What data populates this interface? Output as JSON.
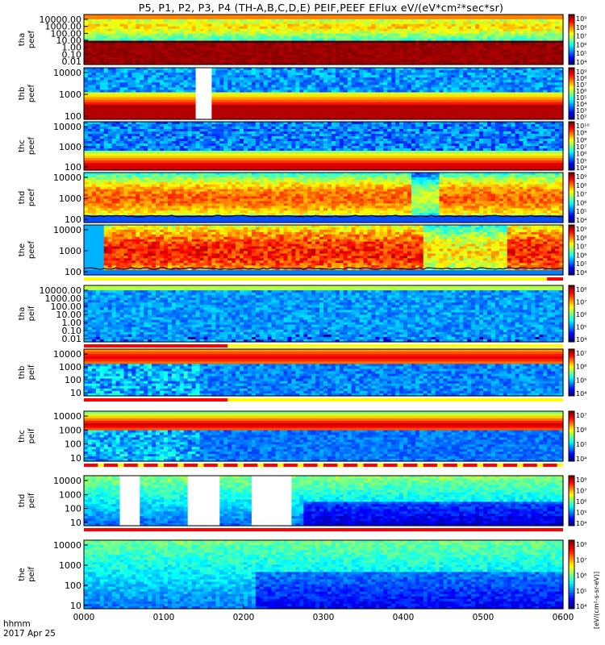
{
  "title": "P5, P1, P2, P3, P4 (TH-A,B,C,D,E) PEIF,PEEF EFlux eV/(eV*cm²*sec*sr)",
  "footer": {
    "time_format": "hhmm",
    "date": "2017 Apr 25"
  },
  "colorbar_label": "[eV/(cm²-s-sr-eV)]",
  "colors": {
    "red": "#ff0000",
    "yellow": "#ffff00",
    "flag_bg": "#ffffff"
  },
  "chart_data": {
    "type": "heatmap",
    "xlabel": "",
    "x_ticks": [
      "0000",
      "0100",
      "0200",
      "0300",
      "0400",
      "0500",
      "0600"
    ],
    "x_range_hours": [
      0,
      6
    ],
    "panels": [
      {
        "probe": "tha",
        "species": "peef",
        "label": "tha peef",
        "y_ticks": [
          "10000.00",
          "1000.00",
          "100.00",
          "10.00",
          "1.00",
          "0.10",
          "0.01"
        ],
        "cb_ticks": [
          "10⁹",
          "10⁸",
          "10⁷",
          "10⁶",
          "10⁵",
          "10⁴"
        ],
        "gaps": [],
        "flag_bar": "none",
        "potential_line": true
      },
      {
        "probe": "thb",
        "species": "peef",
        "label": "thb peef",
        "y_ticks": [
          "10000",
          "1000",
          "100"
        ],
        "cb_ticks": [
          "10⁹",
          "10⁸",
          "10⁷",
          "10⁶",
          "10⁵",
          "10⁴",
          "10³",
          "10²"
        ],
        "gaps": [
          [
            1.4,
            1.6
          ]
        ],
        "flag_bar": "none",
        "potential_line": false
      },
      {
        "probe": "thc",
        "species": "peef",
        "label": "thc peef",
        "y_ticks": [
          "10000",
          "1000",
          "100"
        ],
        "cb_ticks": [
          "10¹⁰",
          "10⁹",
          "10⁸",
          "10⁷",
          "10⁶",
          "10⁵",
          "10⁴"
        ],
        "gaps": [],
        "flag_bar": "none",
        "potential_line": false
      },
      {
        "probe": "thd",
        "species": "peef",
        "label": "thd peef",
        "y_ticks": [
          "10000",
          "1000",
          "100"
        ],
        "cb_ticks": [
          "10⁹",
          "10⁸",
          "10⁷",
          "10⁶",
          "10⁵",
          "10⁴"
        ],
        "gaps": [],
        "flag_bar": "none",
        "potential_line": true
      },
      {
        "probe": "the",
        "species": "peef",
        "label": "the peef",
        "y_ticks": [
          "10000",
          "1000",
          "100"
        ],
        "cb_ticks": [
          "10⁹",
          "10⁸",
          "10⁷",
          "10⁶",
          "10⁵",
          "10⁴"
        ],
        "gaps": [],
        "flag_bar": "tail",
        "potential_line": true
      },
      {
        "probe": "tha",
        "species": "peif",
        "label": "tha peif",
        "y_ticks": [
          "10000.00",
          "1000.00",
          "100.00",
          "10.00",
          "1.00",
          "0.10",
          "0.01"
        ],
        "cb_ticks": [
          "10⁸",
          "10⁷",
          "10⁶",
          "10⁵",
          "10⁴"
        ],
        "gaps": [],
        "flag_bar": "head",
        "potential_line": false
      },
      {
        "probe": "thb",
        "species": "peif",
        "label": "thb peif",
        "y_ticks": [
          "10000",
          "1000",
          "100",
          "10"
        ],
        "cb_ticks": [
          "10⁷",
          "10⁶",
          "10⁵",
          "10⁴"
        ],
        "gaps": [],
        "flag_bar": "head",
        "potential_line": false
      },
      {
        "probe": "thc",
        "species": "peif",
        "label": "thc peif",
        "y_ticks": [
          "10000",
          "1000",
          "100",
          "10"
        ],
        "cb_ticks": [
          "10⁷",
          "10⁶",
          "10⁵",
          "10⁴"
        ],
        "gaps": [],
        "flag_bar": "dashed",
        "potential_line": false
      },
      {
        "probe": "thd",
        "species": "peif",
        "label": "thd peif",
        "y_ticks": [
          "10000",
          "1000",
          "100",
          "10"
        ],
        "cb_ticks": [
          "10⁸",
          "10⁷",
          "10⁶",
          "10⁵",
          "10⁴"
        ],
        "gaps": [
          [
            0.45,
            0.7
          ],
          [
            1.3,
            1.7
          ],
          [
            2.1,
            2.6
          ]
        ],
        "flag_bar": "full",
        "potential_line": false
      },
      {
        "probe": "the",
        "species": "peif",
        "label": "the peif",
        "y_ticks": [
          "10000",
          "1000",
          "100",
          "10"
        ],
        "cb_ticks": [
          "10⁸",
          "10⁷",
          "10⁶",
          "10⁵",
          "10⁴"
        ],
        "gaps": [],
        "flag_bar": "none",
        "potential_line": false
      }
    ]
  }
}
